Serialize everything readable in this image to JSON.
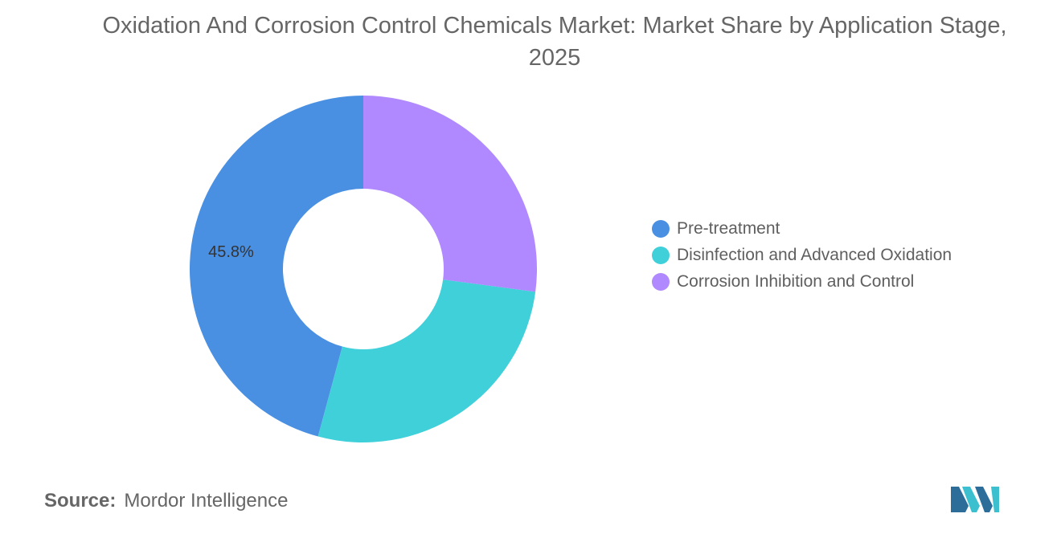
{
  "title": "Oxidation And Corrosion Control Chemicals Market: Market Share by Application Stage, 2025",
  "chart_data": {
    "type": "pie",
    "style": "donut",
    "title": "Oxidation And Corrosion Control Chemicals Market: Market Share by Application Stage, 2025",
    "series": [
      {
        "name": "Pre-treatment",
        "value": 45.8,
        "color": "#4a90e2",
        "label": "45.8%"
      },
      {
        "name": "Disinfection and Advanced Oxidation",
        "value": 27.1,
        "color": "#40d0d9",
        "label": ""
      },
      {
        "name": "Corrosion Inhibition and Control",
        "value": 27.1,
        "color": "#b088ff",
        "label": ""
      }
    ],
    "legend_position": "right"
  },
  "source": {
    "label": "Source:",
    "value": "Mordor Intelligence"
  },
  "logo": {
    "icon": "mordor-intelligence-logo-icon",
    "colors": [
      "#2d6d99",
      "#3cc0cf"
    ]
  }
}
